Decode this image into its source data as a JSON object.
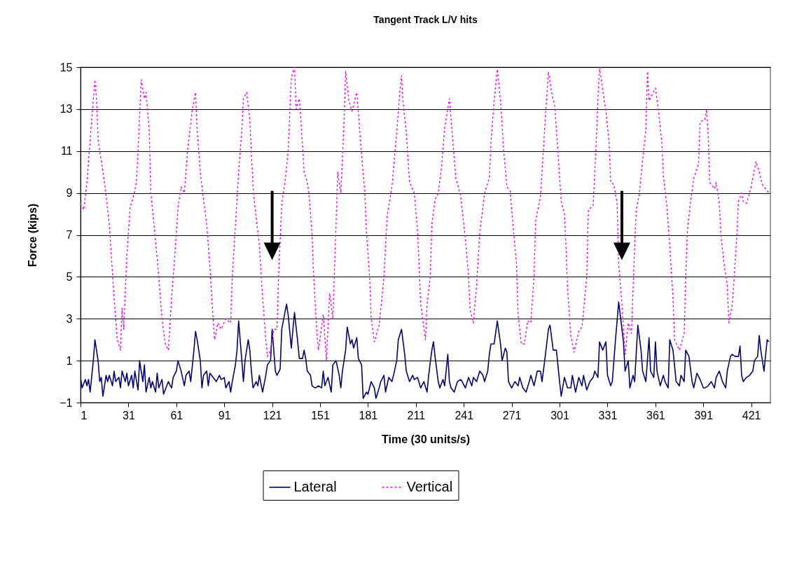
{
  "chart_data": {
    "type": "line",
    "title": "Tangent Track L/V hits",
    "xlabel": "Time (30 units/s)",
    "ylabel": "Force (kips)",
    "xlim": [
      1,
      433
    ],
    "xticks": [
      1,
      31,
      61,
      91,
      121,
      151,
      181,
      211,
      241,
      271,
      301,
      331,
      361,
      391,
      421
    ],
    "ylim": [
      -1,
      15
    ],
    "yticks": [
      -1,
      1,
      3,
      5,
      7,
      9,
      11,
      13,
      15
    ],
    "grid": "y",
    "legend": "bottom",
    "series": [
      {
        "name": "Lateral",
        "color": "#000080",
        "line_style": "solid",
        "x": [
          1,
          2,
          4,
          5,
          6,
          7,
          9,
          10,
          12,
          13,
          14,
          15,
          17,
          18,
          19,
          21,
          22,
          23,
          25,
          26,
          27,
          29,
          30,
          31,
          33,
          34,
          35,
          37,
          38,
          40,
          41,
          42,
          44,
          45,
          46,
          48,
          49,
          50,
          52,
          53,
          54,
          56,
          58,
          59,
          61,
          62,
          64,
          66,
          67,
          69,
          70,
          72,
          73,
          74,
          76,
          77,
          78,
          80,
          81,
          82,
          84,
          86,
          88,
          89,
          91,
          92,
          94,
          95,
          96,
          98,
          99,
          100,
          102,
          103,
          104,
          106,
          107,
          108,
          109,
          111,
          112,
          113,
          115,
          117,
          118,
          120,
          121,
          123,
          124,
          126,
          127,
          130,
          131,
          133,
          134,
          135,
          137,
          138,
          140,
          141,
          142,
          143,
          145,
          146,
          148,
          150,
          152,
          153,
          154,
          156,
          158,
          159,
          161,
          163,
          164,
          165,
          167,
          168,
          170,
          171,
          172,
          174,
          175,
          177,
          178,
          180,
          181,
          183,
          185,
          186,
          188,
          189,
          191,
          192,
          194,
          196,
          197,
          199,
          200,
          202,
          204,
          205,
          207,
          209,
          210,
          212,
          214,
          216,
          218,
          219,
          221,
          222,
          223,
          225,
          226,
          228,
          229,
          231,
          232,
          233,
          235,
          237,
          239,
          240,
          242,
          244,
          246,
          247,
          249,
          251,
          253,
          254,
          256,
          257,
          258,
          260,
          262,
          264,
          265,
          267,
          268,
          269,
          271,
          273,
          275,
          276,
          278,
          280,
          282,
          283,
          285,
          287,
          289,
          290,
          292,
          294,
          295,
          297,
          299,
          301,
          302,
          304,
          306,
          308,
          309,
          311,
          313,
          315,
          316,
          318,
          320,
          322,
          323,
          325,
          326,
          328,
          330,
          331,
          333,
          334,
          336,
          338,
          341,
          342,
          344,
          345,
          347,
          348,
          350,
          352,
          353,
          355,
          356,
          357,
          358,
          360,
          361,
          362,
          364,
          366,
          367,
          369,
          370,
          372,
          374,
          376,
          377,
          379,
          380,
          382,
          384,
          385,
          387,
          389,
          391,
          392,
          394,
          396,
          398,
          399,
          401,
          403,
          405,
          406,
          408,
          409,
          411,
          413,
          414,
          415,
          416,
          418,
          420,
          422,
          423,
          425,
          426,
          427,
          429,
          431,
          432
        ],
        "values": [
          0.2,
          -0.3,
          0.1,
          -0.2,
          0.1,
          -0.5,
          1,
          2,
          1,
          0,
          0.2,
          -0.7,
          0.3,
          0,
          0.3,
          -0.2,
          0.5,
          0,
          0.2,
          -0.3,
          0.5,
          0,
          0.4,
          -0.2,
          0.3,
          -0.3,
          0.5,
          -0.4,
          1,
          0,
          0.8,
          -0.5,
          0.2,
          -0.3,
          0,
          -0.5,
          0.4,
          -0.3,
          0.1,
          -0.6,
          -0.4,
          0,
          -0.3,
          0.2,
          0.5,
          1,
          0.5,
          -0.2,
          0.3,
          0.5,
          0,
          1.5,
          2.4,
          2,
          1,
          -0.3,
          0.3,
          0.5,
          -0.2,
          0.4,
          0.2,
          0,
          0.3,
          0.1,
          0.2,
          -0.3,
          0,
          -0.5,
          0,
          0.8,
          1.5,
          2.9,
          1,
          0,
          1,
          2,
          1.5,
          0.5,
          -0.3,
          0,
          -0.2,
          0.3,
          -0.5,
          0.3,
          0.8,
          1,
          2.5,
          0.5,
          0.3,
          0.6,
          2.5,
          3.7,
          3.2,
          1.6,
          2.5,
          3.3,
          1.9,
          1.1,
          1.1,
          1.5,
          1.1,
          0.5,
          0.3,
          -0.2,
          -0.3,
          -0.2,
          -0.3,
          0.5,
          -0.2,
          0.2,
          -0.5,
          0.8,
          1,
          0.3,
          -0.3,
          0.5,
          1.5,
          2.6,
          1.8,
          2,
          1.6,
          2.1,
          1.1,
          0.8,
          -0.8,
          -0.5,
          -0.6,
          0,
          -0.3,
          -0.8,
          -0.3,
          0,
          0.3,
          -0.5,
          0.2,
          0,
          0.3,
          1,
          2,
          2.5,
          1.3,
          0.5,
          0,
          0.3,
          0.1,
          0.2,
          -0.3,
          0,
          -0.5,
          0.3,
          1.5,
          1.9,
          1.2,
          0,
          -0.3,
          0.1,
          -0.2,
          1.3,
          0,
          -0.3,
          -0.5,
          0,
          0.1,
          0,
          -0.3,
          0.2,
          -0.2,
          0.2,
          0,
          0.5,
          0.3,
          0,
          0.5,
          1.3,
          1.8,
          1.8,
          2.9,
          1.8,
          1,
          1.6,
          1.4,
          0,
          -0.3,
          0,
          -0.2,
          0.2,
          -0.3,
          -0.5,
          0,
          0.3,
          -0.2,
          0.5,
          0.5,
          0,
          1.2,
          2.5,
          2.7,
          1.5,
          1.5,
          0,
          -0.7,
          0.2,
          -0.3,
          -0.3,
          0.3,
          -0.5,
          0.2,
          -0.2,
          0.3,
          -0.4,
          0,
          0.2,
          0.5,
          0.2,
          1.9,
          1.5,
          1.9,
          0.3,
          -0.2,
          0,
          2,
          3.8,
          1.9,
          0.5,
          1,
          -0.3,
          0.3,
          0,
          2.7,
          1.5,
          0.5,
          0,
          1,
          2.1,
          0.5,
          0.2,
          1.9,
          0.5,
          -0.2,
          0.3,
          0,
          -0.3,
          2,
          1.5,
          0,
          -0.2,
          0.3,
          0,
          1.5,
          1.2,
          0,
          -0.3,
          0.4,
          0.1,
          -0.3,
          -0.3,
          -0.2,
          0,
          -0.3,
          0.2,
          0.5,
          0,
          -0.3,
          0.5,
          1.2,
          1.3,
          1.2,
          1.2,
          1.7,
          0.3,
          0,
          0.2,
          0.3,
          0.5,
          1,
          1.2,
          2.2,
          1.5,
          0.5,
          2,
          1.9
        ]
      },
      {
        "name": "Vertical",
        "color": "#ff00ff",
        "line_style": "dotted",
        "x": [
          1,
          3,
          5,
          8,
          10,
          11,
          12,
          15,
          16,
          19,
          22,
          24,
          26,
          27,
          28,
          30,
          32,
          34,
          36,
          37,
          39,
          41,
          42,
          44,
          45,
          47,
          50,
          52,
          54,
          56,
          58,
          60,
          62,
          64,
          66,
          68,
          71,
          73,
          74,
          76,
          77,
          80,
          82,
          84,
          85,
          87,
          89,
          92,
          95,
          96,
          98,
          100,
          102,
          103,
          105,
          107,
          109,
          110,
          113,
          115,
          117,
          118,
          120,
          122,
          124,
          125,
          127,
          129,
          131,
          133,
          135,
          136,
          138,
          139,
          141,
          143,
          144,
          146,
          147,
          149,
          150,
          153,
          155,
          156,
          157,
          159,
          161,
          162,
          164,
          166,
          167,
          169,
          171,
          174,
          177,
          179,
          180,
          182,
          183,
          185,
          188,
          191,
          193,
          196,
          199,
          201,
          202,
          203,
          205,
          207,
          210,
          212,
          213,
          214,
          217,
          218,
          220,
          221,
          223,
          225,
          227,
          229,
          232,
          234,
          236,
          239,
          242,
          244,
          245,
          247,
          249,
          251,
          254,
          257,
          258,
          260,
          262,
          264,
          266,
          268,
          270,
          272,
          274,
          275,
          277,
          279,
          281,
          283,
          285,
          286,
          289,
          292,
          294,
          296,
          298,
          300,
          302,
          304,
          305,
          306,
          308,
          310,
          313,
          315,
          318,
          319,
          322,
          324,
          325,
          326,
          328,
          330,
          332,
          333,
          335,
          337,
          338,
          340,
          342,
          344,
          346,
          348,
          349,
          351,
          353,
          355,
          356,
          357,
          359,
          361,
          363,
          365,
          366,
          368,
          370,
          372,
          373,
          376,
          379,
          380,
          381,
          383,
          385,
          388,
          389,
          392,
          393,
          394,
          395,
          398,
          399,
          401,
          402,
          404,
          406,
          407,
          409,
          410,
          412,
          413,
          415,
          416,
          418,
          420,
          422,
          424,
          426,
          428,
          431,
          432
        ],
        "values": [
          8.5,
          8.2,
          9.5,
          12.5,
          14.4,
          13.5,
          11.5,
          10,
          9.5,
          7.5,
          4,
          2,
          1.5,
          3.5,
          2.5,
          6,
          8.3,
          8.8,
          9.5,
          11,
          14.4,
          13.5,
          13.8,
          12,
          9,
          7.5,
          5,
          3,
          1.8,
          1.5,
          4,
          6,
          8.3,
          9.3,
          9,
          11,
          13,
          13.8,
          12,
          10,
          9.3,
          7.5,
          5.5,
          3,
          2,
          2.8,
          2.5,
          3,
          2.8,
          5,
          7.5,
          10,
          12,
          13.5,
          13.8,
          12.5,
          9.3,
          8.5,
          6.5,
          4,
          2,
          1.2,
          1.5,
          2.5,
          2.5,
          5,
          8.5,
          9.5,
          11,
          14.5,
          15,
          13,
          13.5,
          12.5,
          10,
          9.5,
          9,
          7,
          5,
          2.3,
          1.5,
          3.2,
          1,
          2.7,
          4.2,
          3,
          7.5,
          10,
          9,
          12.4,
          14.8,
          13.4,
          12.9,
          13.8,
          10.8,
          9.1,
          7.2,
          5,
          3,
          1.9,
          2.7,
          5,
          7.9,
          9.3,
          11.9,
          13.9,
          14.6,
          13.3,
          11.9,
          9.5,
          9,
          7.2,
          5.6,
          3.7,
          2,
          3.7,
          5,
          7.5,
          8.7,
          9,
          10.2,
          12.1,
          13.5,
          11.6,
          9.7,
          8.9,
          6.8,
          5,
          3.4,
          2.8,
          4.6,
          7.1,
          9,
          9.7,
          11.4,
          13.4,
          14.9,
          13.4,
          11,
          9.3,
          9.1,
          7.3,
          5.6,
          3.2,
          1.8,
          1.8,
          2.9,
          2.8,
          5.1,
          7.7,
          8.8,
          12.5,
          14.8,
          13.8,
          13.1,
          10.9,
          8.6,
          8,
          6.4,
          4.4,
          2.2,
          1.4,
          2.4,
          2.6,
          5,
          8.2,
          8.4,
          11.6,
          13.5,
          15,
          13.9,
          12.9,
          11.4,
          9.5,
          9.4,
          8.5,
          5.6,
          3.7,
          1.3,
          2.8,
          2.3,
          6.5,
          8.2,
          9,
          10.6,
          12,
          14.8,
          13.4,
          13.7,
          14,
          12.9,
          11.4,
          9.8,
          8.5,
          6.5,
          4,
          2,
          1.5,
          2.3,
          5,
          7.2,
          8.6,
          9.7,
          10.4,
          12.4,
          12.5,
          13,
          11.9,
          9.5,
          9.2,
          9.5,
          8.5,
          7,
          5.6,
          4.6,
          2.8,
          3.6,
          4.6,
          7,
          8.6,
          9,
          8.6,
          8.5,
          9,
          9.7,
          10.5,
          10,
          9.4,
          9.1,
          9
        ]
      }
    ]
  }
}
